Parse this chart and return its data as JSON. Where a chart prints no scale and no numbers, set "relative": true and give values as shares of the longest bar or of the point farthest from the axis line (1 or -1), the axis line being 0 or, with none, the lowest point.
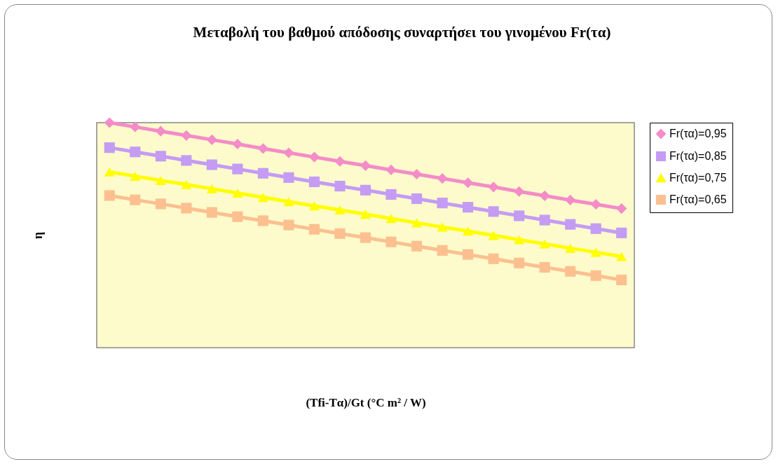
{
  "chart_data": {
    "type": "line",
    "title": "Μεταβολή του βαθμού απόδοσης συναρτήσει του γινομένου Fr(τα)",
    "xlabel": "(Tfi-Tα)/Gt  (°C m² / W)",
    "ylabel": "η",
    "relative": true,
    "legend": "right",
    "grid": false,
    "categories": [
      null,
      null,
      null,
      null,
      null,
      null,
      null,
      null,
      null,
      null,
      null,
      null,
      null,
      null,
      null,
      null,
      null,
      null,
      null,
      null,
      null
    ],
    "series": [
      {
        "name": "Fr(τα)=0,95",
        "color": "#f48cc8",
        "marker": "diamond",
        "values": [
          1,
          0.981,
          0.962,
          0.943,
          0.924,
          0.905,
          0.885,
          0.866,
          0.847,
          0.828,
          0.809,
          0.79,
          0.771,
          0.752,
          0.733,
          0.714,
          0.694,
          0.675,
          0.656,
          0.637,
          0.618
        ]
      },
      {
        "name": "Fr(τα)=0,85",
        "color": "#c49cf4",
        "marker": "square",
        "values": [
          0.889,
          0.87,
          0.851,
          0.832,
          0.813,
          0.794,
          0.775,
          0.756,
          0.737,
          0.718,
          0.7,
          0.681,
          0.662,
          0.643,
          0.624,
          0.605,
          0.586,
          0.567,
          0.548,
          0.529,
          0.51
        ]
      },
      {
        "name": "Fr(τα)=0,75",
        "color": "#ffff00",
        "marker": "triangle",
        "values": [
          0.781,
          0.762,
          0.743,
          0.725,
          0.706,
          0.687,
          0.668,
          0.649,
          0.63,
          0.612,
          0.593,
          0.574,
          0.555,
          0.536,
          0.518,
          0.499,
          0.48,
          0.461,
          0.442,
          0.424,
          0.405
        ]
      },
      {
        "name": "Fr(τα)=0,65",
        "color": "#fcc090",
        "marker": "square",
        "values": [
          0.676,
          0.657,
          0.639,
          0.62,
          0.601,
          0.582,
          0.564,
          0.545,
          0.526,
          0.507,
          0.489,
          0.47,
          0.451,
          0.432,
          0.414,
          0.395,
          0.376,
          0.357,
          0.339,
          0.32,
          0.301
        ]
      }
    ]
  }
}
